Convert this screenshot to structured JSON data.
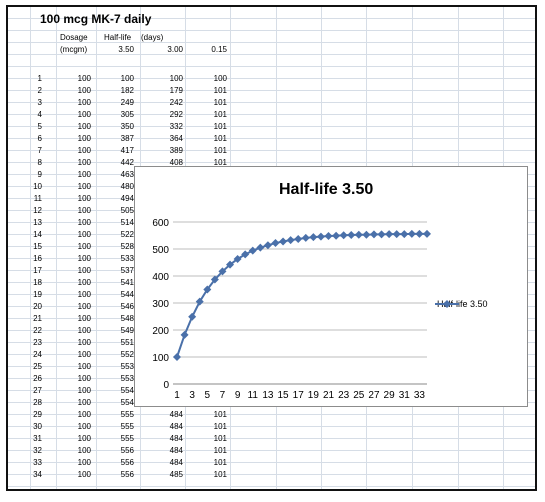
{
  "sheet": {
    "title": "100 mcg MK-7 daily",
    "header_row1": {
      "dosage": "Dosage",
      "halflife": "Half-life",
      "days": "(days)"
    },
    "header_row2": {
      "units": "(mcgm)",
      "v1": "3.50",
      "v2": "3.00",
      "v3": "0.15"
    },
    "rows": [
      {
        "n": "1",
        "dose": "100",
        "c1": "100",
        "c2": "100",
        "c3": "100"
      },
      {
        "n": "2",
        "dose": "100",
        "c1": "182",
        "c2": "179",
        "c3": "101"
      },
      {
        "n": "3",
        "dose": "100",
        "c1": "249",
        "c2": "242",
        "c3": "101"
      },
      {
        "n": "4",
        "dose": "100",
        "c1": "305",
        "c2": "292",
        "c3": "101"
      },
      {
        "n": "5",
        "dose": "100",
        "c1": "350",
        "c2": "332",
        "c3": "101"
      },
      {
        "n": "6",
        "dose": "100",
        "c1": "387",
        "c2": "364",
        "c3": "101"
      },
      {
        "n": "7",
        "dose": "100",
        "c1": "417",
        "c2": "389",
        "c3": "101"
      },
      {
        "n": "8",
        "dose": "100",
        "c1": "442",
        "c2": "408",
        "c3": "101"
      },
      {
        "n": "9",
        "dose": "100",
        "c1": "463",
        "c2": "",
        "c3": ""
      },
      {
        "n": "10",
        "dose": "100",
        "c1": "480",
        "c2": "",
        "c3": ""
      },
      {
        "n": "11",
        "dose": "100",
        "c1": "494",
        "c2": "",
        "c3": ""
      },
      {
        "n": "12",
        "dose": "100",
        "c1": "505",
        "c2": "",
        "c3": ""
      },
      {
        "n": "13",
        "dose": "100",
        "c1": "514",
        "c2": "",
        "c3": ""
      },
      {
        "n": "14",
        "dose": "100",
        "c1": "522",
        "c2": "",
        "c3": ""
      },
      {
        "n": "15",
        "dose": "100",
        "c1": "528",
        "c2": "",
        "c3": ""
      },
      {
        "n": "16",
        "dose": "100",
        "c1": "533",
        "c2": "",
        "c3": ""
      },
      {
        "n": "17",
        "dose": "100",
        "c1": "537",
        "c2": "",
        "c3": ""
      },
      {
        "n": "18",
        "dose": "100",
        "c1": "541",
        "c2": "",
        "c3": ""
      },
      {
        "n": "19",
        "dose": "100",
        "c1": "544",
        "c2": "",
        "c3": ""
      },
      {
        "n": "20",
        "dose": "100",
        "c1": "546",
        "c2": "",
        "c3": ""
      },
      {
        "n": "21",
        "dose": "100",
        "c1": "548",
        "c2": "",
        "c3": ""
      },
      {
        "n": "22",
        "dose": "100",
        "c1": "549",
        "c2": "",
        "c3": ""
      },
      {
        "n": "23",
        "dose": "100",
        "c1": "551",
        "c2": "",
        "c3": ""
      },
      {
        "n": "24",
        "dose": "100",
        "c1": "552",
        "c2": "",
        "c3": ""
      },
      {
        "n": "25",
        "dose": "100",
        "c1": "553",
        "c2": "",
        "c3": ""
      },
      {
        "n": "26",
        "dose": "100",
        "c1": "553",
        "c2": "",
        "c3": ""
      },
      {
        "n": "27",
        "dose": "100",
        "c1": "554",
        "c2": "",
        "c3": ""
      },
      {
        "n": "28",
        "dose": "100",
        "c1": "554",
        "c2": "484",
        "c3": "101"
      },
      {
        "n": "29",
        "dose": "100",
        "c1": "555",
        "c2": "484",
        "c3": "101"
      },
      {
        "n": "30",
        "dose": "100",
        "c1": "555",
        "c2": "484",
        "c3": "101"
      },
      {
        "n": "31",
        "dose": "100",
        "c1": "555",
        "c2": "484",
        "c3": "101"
      },
      {
        "n": "32",
        "dose": "100",
        "c1": "556",
        "c2": "484",
        "c3": "101"
      },
      {
        "n": "33",
        "dose": "100",
        "c1": "556",
        "c2": "484",
        "c3": "101"
      },
      {
        "n": "34",
        "dose": "100",
        "c1": "556",
        "c2": "485",
        "c3": "101"
      }
    ]
  },
  "chart_data": {
    "type": "line",
    "title": "Half-life 3.50",
    "xlabel": "",
    "ylabel": "",
    "ylim": [
      0,
      600
    ],
    "yticks": [
      "0",
      "100",
      "200",
      "300",
      "400",
      "500",
      "600"
    ],
    "xticks": [
      "1",
      "3",
      "5",
      "7",
      "9",
      "11",
      "13",
      "15",
      "17",
      "19",
      "21",
      "23",
      "25",
      "27",
      "29",
      "31",
      "33"
    ],
    "x": [
      1,
      2,
      3,
      4,
      5,
      6,
      7,
      8,
      9,
      10,
      11,
      12,
      13,
      14,
      15,
      16,
      17,
      18,
      19,
      20,
      21,
      22,
      23,
      24,
      25,
      26,
      27,
      28,
      29,
      30,
      31,
      32,
      33,
      34
    ],
    "series": [
      {
        "name": "Half-life 3.50",
        "values": [
          100,
          182,
          249,
          305,
          350,
          387,
          417,
          442,
          463,
          480,
          494,
          505,
          514,
          522,
          528,
          533,
          537,
          541,
          544,
          546,
          548,
          549,
          551,
          552,
          553,
          553,
          554,
          554,
          555,
          555,
          555,
          556,
          556,
          556
        ]
      }
    ],
    "grid": true,
    "legend": "right",
    "color": "#4a70a9"
  }
}
